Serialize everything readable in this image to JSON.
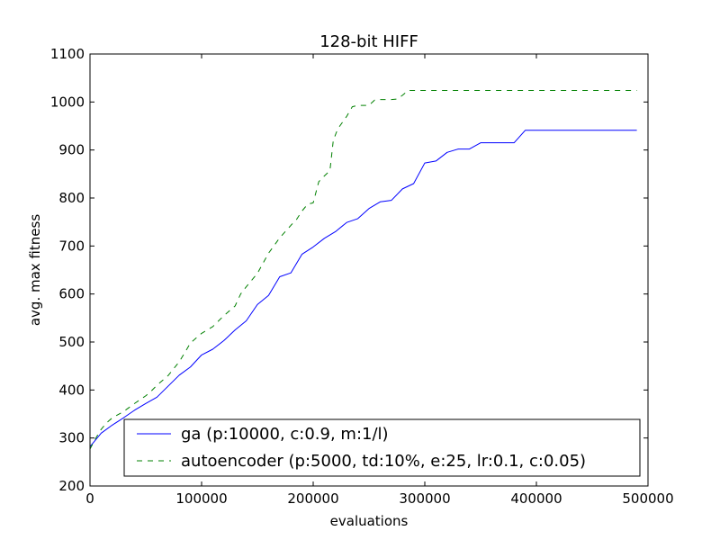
{
  "chart_data": {
    "type": "line",
    "title": "128-bit HIFF",
    "xlabel": "evaluations",
    "ylabel": "avg. max fitness",
    "xlim": [
      0,
      500000
    ],
    "ylim": [
      200,
      1100
    ],
    "xticks": [
      0,
      100000,
      200000,
      300000,
      400000,
      500000
    ],
    "xtick_labels": [
      "0",
      "100000",
      "200000",
      "300000",
      "400000",
      "500000"
    ],
    "yticks": [
      200,
      300,
      400,
      500,
      600,
      700,
      800,
      900,
      1000,
      1100
    ],
    "ytick_labels": [
      "200",
      "300",
      "400",
      "500",
      "600",
      "700",
      "800",
      "900",
      "1000",
      "1100"
    ],
    "grid": false,
    "legend_position": "lower-right",
    "series": [
      {
        "name": "ga (p:10000, c:0.9, m:1/l)",
        "color": "#0000ff",
        "linestyle": "solid",
        "x": [
          0,
          10000,
          20000,
          30000,
          40000,
          50000,
          60000,
          70000,
          80000,
          90000,
          100000,
          110000,
          120000,
          130000,
          140000,
          150000,
          160000,
          170000,
          180000,
          190000,
          200000,
          210000,
          220000,
          230000,
          240000,
          250000,
          260000,
          270000,
          280000,
          290000,
          300000,
          310000,
          320000,
          330000,
          340000,
          350000,
          360000,
          370000,
          380000,
          390000,
          400000,
          490000
        ],
        "y": [
          282,
          310,
          327,
          342,
          358,
          372,
          385,
          408,
          431,
          448,
          473,
          485,
          503,
          525,
          544,
          578,
          597,
          636,
          644,
          683,
          698,
          716,
          730,
          749,
          757,
          778,
          792,
          795,
          819,
          830,
          873,
          877,
          895,
          902,
          902,
          915,
          915,
          915,
          915,
          941,
          941,
          941
        ]
      },
      {
        "name": "autoencoder (p:5000, td:10%, e:25, lr:0.1, c:0.05)",
        "color": "#008000",
        "linestyle": "dashed",
        "x": [
          0,
          5000,
          10000,
          15000,
          20000,
          30000,
          40000,
          50000,
          55000,
          60000,
          70000,
          80000,
          85000,
          90000,
          100000,
          110000,
          120000,
          130000,
          135000,
          140000,
          150000,
          160000,
          170000,
          180000,
          185000,
          190000,
          195000,
          200000,
          205000,
          210000,
          215000,
          218000,
          222000,
          230000,
          235000,
          240000,
          250000,
          255000,
          260000,
          270000,
          275000,
          280000,
          285000,
          290000,
          300000,
          490000
        ],
        "y": [
          277,
          299,
          318,
          332,
          342,
          355,
          372,
          388,
          398,
          410,
          430,
          459,
          478,
          498,
          518,
          532,
          555,
          575,
          600,
          615,
          643,
          685,
          717,
          743,
          755,
          773,
          787,
          790,
          834,
          846,
          857,
          920,
          944,
          970,
          990,
          993,
          993,
          1004,
          1005,
          1005,
          1006,
          1014,
          1024,
          1024,
          1024,
          1024
        ]
      }
    ]
  }
}
